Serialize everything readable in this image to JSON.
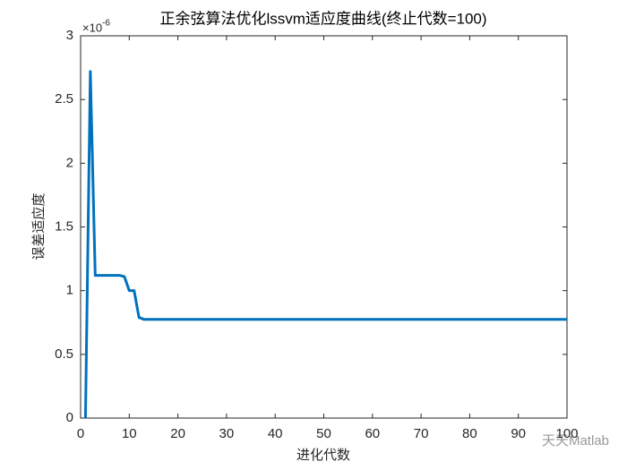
{
  "chart_data": {
    "type": "line",
    "title": "正余弦算法优化lssvm适应度曲线(终止代数=100)",
    "x_label": "进化代数",
    "y_label": "误差适应度",
    "y_exponent_base": "×10",
    "y_exponent_power": "-6",
    "watermark": "天天Matlab",
    "series": [
      {
        "color": "#0072bd",
        "x": [
          1,
          2,
          3,
          4,
          5,
          6,
          7,
          8,
          9,
          10,
          11,
          12,
          13,
          100
        ],
        "values": [
          0,
          2.72,
          1.12,
          1.12,
          1.12,
          1.12,
          1.12,
          1.12,
          1.11,
          1.0,
          1.0,
          0.79,
          0.775,
          0.775
        ]
      }
    ],
    "xlim": [
      0,
      100
    ],
    "xticks": [
      0,
      10,
      20,
      30,
      40,
      50,
      60,
      70,
      80,
      90,
      100
    ],
    "ylim": [
      0,
      3
    ],
    "yticks": [
      0,
      0.5,
      1,
      1.5,
      2,
      2.5,
      3
    ],
    "grid": false
  }
}
